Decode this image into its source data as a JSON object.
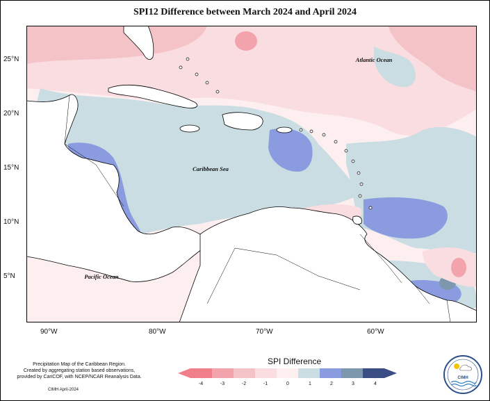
{
  "title": "SPI12 Difference between March 2024 and April 2024",
  "map": {
    "lat_labels": [
      "25°N",
      "20°N",
      "15°N",
      "10°N",
      "5°N"
    ],
    "lon_labels": [
      "90°W",
      "80°W",
      "70°W",
      "60°W"
    ],
    "place_labels": {
      "atlantic": "Atlantic Ocean",
      "caribbean": "Caribbean Sea",
      "pacific": "Pacific Ocean"
    },
    "colors": {
      "land": "#ffffff",
      "coast": "#000000",
      "neg4": "#f07f8a",
      "neg3": "#f2a3ab",
      "neg2": "#f4c3c8",
      "neg1": "#fadde0",
      "zero": "#fdeef0",
      "pos1": "#c9dde3",
      "pos2": "#8a9be0",
      "pos3": "#7d98ad",
      "pos4": "#3b4e84"
    }
  },
  "legend": {
    "title": "SPI Difference",
    "ticks": [
      "-4",
      "-3",
      "-2",
      "-1",
      "0",
      "1",
      "2",
      "3",
      "4"
    ]
  },
  "credits": {
    "line1": "Precipitation Map of the Caribbean Region.",
    "line2": "Created by aggregating station based observations,",
    "line3": "provided by CariCOF, with NCEP/NCAR Reanalysis Data.",
    "stamp": "CIMH April-2024"
  },
  "logo": {
    "text": "CIMH"
  }
}
